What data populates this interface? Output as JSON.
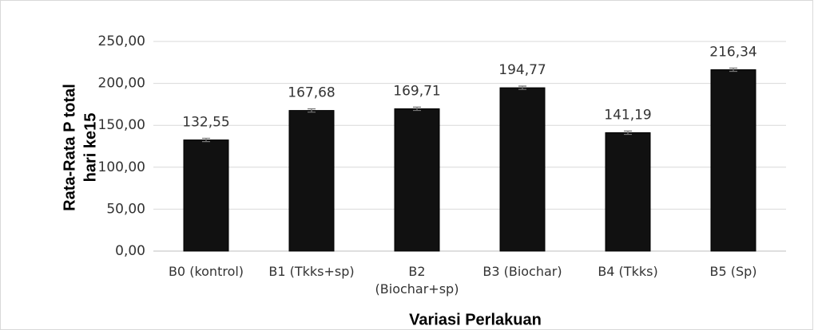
{
  "chart_data": {
    "type": "bar",
    "y_label": [
      "Rata-Rata P total",
      "hari ke15"
    ],
    "x_label": "Variasi Perlakuan",
    "categories": [
      "B0 (kontrol)",
      "B1 (Tkks+sp)",
      "B2 (Biochar+sp)",
      "B3 (Biochar)",
      "B4 (Tkks)",
      "B5 (Sp)"
    ],
    "values": [
      132.55,
      167.68,
      169.71,
      194.77,
      141.19,
      216.34
    ],
    "value_labels": [
      "132,55",
      "167,68",
      "169,71",
      "194,77",
      "141,19",
      "216,34"
    ],
    "errors": [
      2,
      2,
      2,
      2,
      2,
      2
    ],
    "color": "#111111",
    "ylim": [
      0,
      250
    ],
    "yticks": [
      {
        "value": 0,
        "label": "0,00"
      },
      {
        "value": 50,
        "label": "50,00"
      },
      {
        "value": 100,
        "label": "100,00"
      },
      {
        "value": 150,
        "label": "150,00"
      },
      {
        "value": 200,
        "label": "200,00"
      },
      {
        "value": 250,
        "label": "250,00"
      }
    ],
    "grid": true
  }
}
